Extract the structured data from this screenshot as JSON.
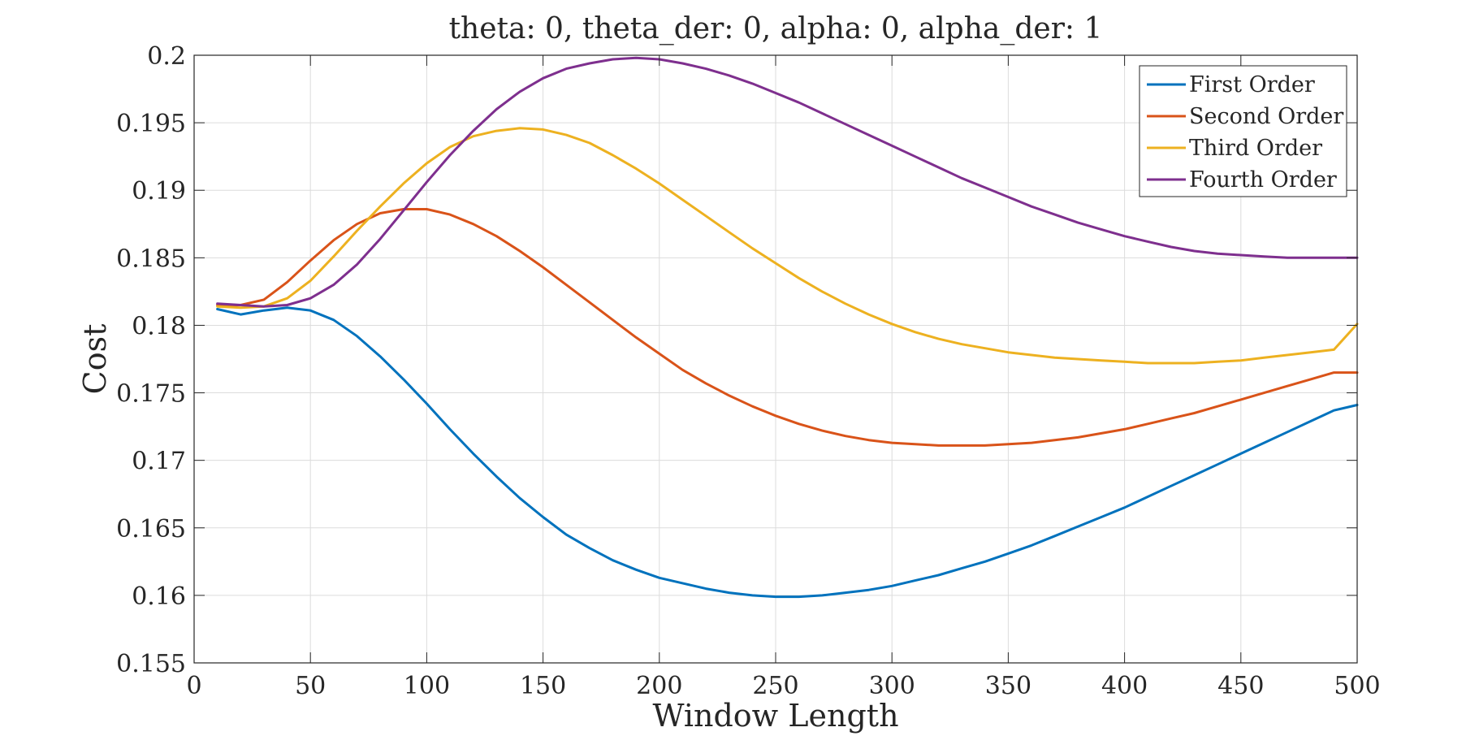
{
  "chart_data": {
    "type": "line",
    "title": "theta: 0, theta_der: 0, alpha: 0, alpha_der: 1",
    "xlabel": "Window Length",
    "ylabel": "Cost",
    "xlim": [
      0,
      500
    ],
    "ylim": [
      0.155,
      0.2
    ],
    "xticks": [
      0,
      50,
      100,
      150,
      200,
      250,
      300,
      350,
      400,
      450,
      500
    ],
    "yticks": [
      0.155,
      0.16,
      0.165,
      0.17,
      0.175,
      0.18,
      0.185,
      0.19,
      0.195,
      0.2
    ],
    "xtick_labels": [
      "0",
      "50",
      "100",
      "150",
      "200",
      "250",
      "300",
      "350",
      "400",
      "450",
      "500"
    ],
    "ytick_labels": [
      "0.155",
      "0.16",
      "0.165",
      "0.17",
      "0.175",
      "0.18",
      "0.185",
      "0.19",
      "0.195",
      "0.2"
    ],
    "grid": true,
    "legend_position": "top-right",
    "series": [
      {
        "name": "First Order",
        "color": "#0072BD",
        "x": [
          10,
          20,
          30,
          40,
          50,
          60,
          70,
          80,
          90,
          100,
          110,
          120,
          130,
          140,
          150,
          160,
          170,
          180,
          190,
          200,
          210,
          220,
          230,
          240,
          250,
          260,
          270,
          280,
          290,
          300,
          310,
          320,
          330,
          340,
          350,
          360,
          370,
          380,
          390,
          400,
          410,
          420,
          430,
          440,
          450,
          460,
          470,
          480,
          490,
          500
        ],
        "y": [
          0.1812,
          0.1808,
          0.1811,
          0.1813,
          0.1811,
          0.1804,
          0.1792,
          0.1777,
          0.176,
          0.1742,
          0.1723,
          0.1705,
          0.1688,
          0.1672,
          0.1658,
          0.1645,
          0.1635,
          0.1626,
          0.1619,
          0.1613,
          0.1609,
          0.1605,
          0.1602,
          0.16,
          0.1599,
          0.1599,
          0.16,
          0.1602,
          0.1604,
          0.1607,
          0.1611,
          0.1615,
          0.162,
          0.1625,
          0.1631,
          0.1637,
          0.1644,
          0.1651,
          0.1658,
          0.1665,
          0.1673,
          0.1681,
          0.1689,
          0.1697,
          0.1705,
          0.1713,
          0.1721,
          0.1729,
          0.1737,
          0.1741
        ]
      },
      {
        "name": "Second Order",
        "color": "#D95319",
        "x": [
          10,
          20,
          30,
          40,
          50,
          60,
          70,
          80,
          90,
          100,
          110,
          120,
          130,
          140,
          150,
          160,
          170,
          180,
          190,
          200,
          210,
          220,
          230,
          240,
          250,
          260,
          270,
          280,
          290,
          300,
          310,
          320,
          330,
          340,
          350,
          360,
          370,
          380,
          390,
          400,
          410,
          420,
          430,
          440,
          450,
          460,
          470,
          480,
          490,
          500
        ],
        "y": [
          0.1815,
          0.1815,
          0.1819,
          0.1832,
          0.1848,
          0.1863,
          0.1875,
          0.1883,
          0.1886,
          0.1886,
          0.1882,
          0.1875,
          0.1866,
          0.1855,
          0.1843,
          0.183,
          0.1817,
          0.1804,
          0.1791,
          0.1779,
          0.1767,
          0.1757,
          0.1748,
          0.174,
          0.1733,
          0.1727,
          0.1722,
          0.1718,
          0.1715,
          0.1713,
          0.1712,
          0.1711,
          0.1711,
          0.1711,
          0.1712,
          0.1713,
          0.1715,
          0.1717,
          0.172,
          0.1723,
          0.1727,
          0.1731,
          0.1735,
          0.174,
          0.1745,
          0.175,
          0.1755,
          0.176,
          0.1765,
          0.1765
        ]
      },
      {
        "name": "Third Order",
        "color": "#EDB120",
        "x": [
          10,
          20,
          30,
          40,
          50,
          60,
          70,
          80,
          90,
          100,
          110,
          120,
          130,
          140,
          150,
          160,
          170,
          180,
          190,
          200,
          210,
          220,
          230,
          240,
          250,
          260,
          270,
          280,
          290,
          300,
          310,
          320,
          330,
          340,
          350,
          360,
          370,
          380,
          390,
          400,
          410,
          420,
          430,
          440,
          450,
          460,
          470,
          480,
          490,
          500
        ],
        "y": [
          0.1814,
          0.1813,
          0.1814,
          0.182,
          0.1833,
          0.1851,
          0.187,
          0.1888,
          0.1905,
          0.192,
          0.1932,
          0.194,
          0.1944,
          0.1946,
          0.1945,
          0.1941,
          0.1935,
          0.1926,
          0.1916,
          0.1905,
          0.1893,
          0.1881,
          0.1869,
          0.1857,
          0.1846,
          0.1835,
          0.1825,
          0.1816,
          0.1808,
          0.1801,
          0.1795,
          0.179,
          0.1786,
          0.1783,
          0.178,
          0.1778,
          0.1776,
          0.1775,
          0.1774,
          0.1773,
          0.1772,
          0.1772,
          0.1772,
          0.1773,
          0.1774,
          0.1776,
          0.1778,
          0.178,
          0.1782,
          0.1801
        ]
      },
      {
        "name": "Fourth Order",
        "color": "#7E2F8E",
        "x": [
          10,
          20,
          30,
          40,
          50,
          60,
          70,
          80,
          90,
          100,
          110,
          120,
          130,
          140,
          150,
          160,
          170,
          180,
          190,
          200,
          210,
          220,
          230,
          240,
          250,
          260,
          270,
          280,
          290,
          300,
          310,
          320,
          330,
          340,
          350,
          360,
          370,
          380,
          390,
          400,
          410,
          420,
          430,
          440,
          450,
          460,
          470,
          480,
          490,
          500
        ],
        "y": [
          0.1816,
          0.1815,
          0.1814,
          0.1815,
          0.182,
          0.183,
          0.1845,
          0.1864,
          0.1885,
          0.1906,
          0.1926,
          0.1944,
          0.196,
          0.1973,
          0.1983,
          0.199,
          0.1994,
          0.1997,
          0.1998,
          0.1997,
          0.1994,
          0.199,
          0.1985,
          0.1979,
          0.1972,
          0.1965,
          0.1957,
          0.1949,
          0.1941,
          0.1933,
          0.1925,
          0.1917,
          0.1909,
          0.1902,
          0.1895,
          0.1888,
          0.1882,
          0.1876,
          0.1871,
          0.1866,
          0.1862,
          0.1858,
          0.1855,
          0.1853,
          0.1852,
          0.1851,
          0.185,
          0.185,
          0.185,
          0.185
        ]
      }
    ]
  }
}
